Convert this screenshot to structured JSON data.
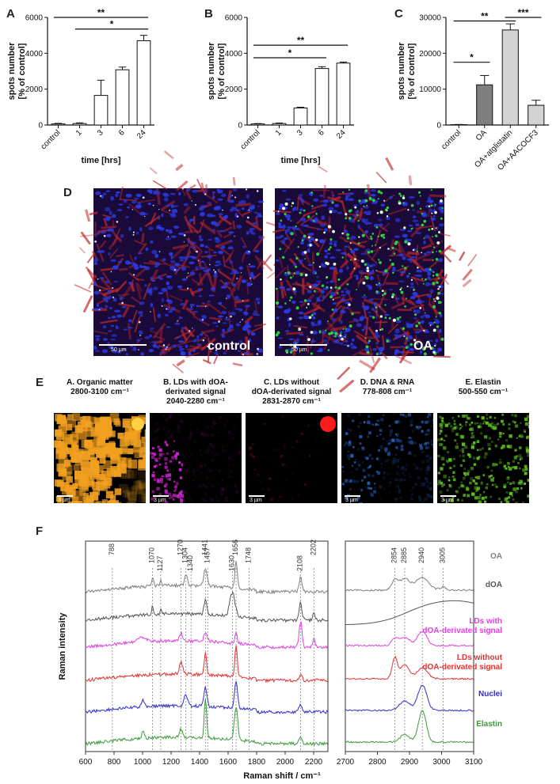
{
  "panel_letters": {
    "A": "A",
    "B": "B",
    "C": "C",
    "D": "D",
    "E": "E",
    "F": "F"
  },
  "chart_data": [
    {
      "id": "A",
      "type": "bar",
      "categories": [
        "control",
        "1",
        "3",
        "6",
        "24"
      ],
      "values": [
        60,
        80,
        1650,
        3080,
        4700
      ],
      "errors": [
        30,
        40,
        850,
        150,
        300
      ],
      "ylabel_line1": "spots number",
      "ylabel_line2": "[% of control]",
      "xlabel": "time [hrs]",
      "ylim": [
        0,
        6000
      ],
      "yticks": [
        "0",
        "2000",
        "4000",
        "6000"
      ],
      "yticks_values": [
        0,
        2000,
        4000,
        6000
      ],
      "bar_color": "#ffffff",
      "significance": [
        {
          "from": 0,
          "to": 4,
          "label": "**",
          "y": 6000
        },
        {
          "from": 1,
          "to": 4,
          "label": "*",
          "y": 5350
        }
      ]
    },
    {
      "id": "B",
      "type": "bar",
      "categories": [
        "control",
        "1",
        "3",
        "6",
        "24"
      ],
      "values": [
        60,
        80,
        950,
        3150,
        3450
      ],
      "errors": [
        20,
        30,
        40,
        100,
        60
      ],
      "ylabel_line1": "spots number",
      "ylabel_line2": "[% of control]",
      "xlabel": "time [hrs]",
      "ylim": [
        0,
        6000
      ],
      "yticks": [
        "0",
        "2000",
        "4000",
        "6000"
      ],
      "yticks_values": [
        0,
        2000,
        4000,
        6000
      ],
      "bar_color": "#ffffff",
      "significance": [
        {
          "from": 0,
          "to": 4,
          "label": "**",
          "y": 4450
        },
        {
          "from": 0,
          "to": 3,
          "label": "*",
          "y": 3750
        }
      ]
    },
    {
      "id": "C",
      "type": "bar",
      "categories": [
        "control",
        "OA",
        "OA+atglistatin",
        "OA+AACOCF3"
      ],
      "values": [
        100,
        11200,
        26500,
        5500
      ],
      "errors": [
        50,
        2600,
        1700,
        1400
      ],
      "bar_colors": [
        "#ffffff",
        "#7f7f7f",
        "#d3d3d3",
        "#d3d3d3"
      ],
      "ylabel_line1": "spots number",
      "ylabel_line2": "[% of control]",
      "xlabel": "",
      "ylim": [
        0,
        30000
      ],
      "yticks": [
        "0",
        "10000",
        "20000",
        "30000"
      ],
      "yticks_values": [
        0,
        10000,
        20000,
        30000
      ],
      "significance": [
        {
          "from": 0,
          "to": 2,
          "label": "**",
          "y": 29000
        },
        {
          "from": 2,
          "to": 3,
          "label": "***",
          "y": 30000
        },
        {
          "from": 0,
          "to": 1,
          "label": "*",
          "y": 17500
        }
      ]
    },
    {
      "id": "F",
      "type": "line",
      "ylabel": "Raman intensity",
      "xlabel": "Raman shift / cm⁻¹",
      "left_xlim": [
        600,
        2300
      ],
      "left_xticks": [
        "600",
        "800",
        "1000",
        "1200",
        "1400",
        "1600",
        "1800",
        "2000",
        "2200"
      ],
      "left_xticks_values": [
        600,
        800,
        1000,
        1200,
        1400,
        1600,
        1800,
        2000,
        2200
      ],
      "right_xlim": [
        2700,
        3100
      ],
      "right_xticks": [
        "2700",
        "2800",
        "2900",
        "3000",
        "3100"
      ],
      "right_xticks_values": [
        2700,
        2800,
        2900,
        3000,
        3100
      ],
      "peaks_left": [
        "788",
        "1070",
        "1127",
        "1270",
        "1304",
        "1340",
        "1441",
        "1457",
        "1630",
        "1656",
        "1748",
        "2108",
        "2202"
      ],
      "peaks_left_values": [
        788,
        1070,
        1127,
        1270,
        1304,
        1340,
        1441,
        1457,
        1630,
        1656,
        1748,
        2108,
        2202
      ],
      "peaks_right": [
        "2854",
        "2885",
        "2940",
        "3005"
      ],
      "peaks_right_values": [
        2854,
        2885,
        2940,
        3005
      ],
      "series": [
        {
          "name": "OA",
          "color": "#7f7f7f",
          "name2": ""
        },
        {
          "name": "dOA",
          "color": "#555555",
          "name2": ""
        },
        {
          "name": "LDs with",
          "name2": "dOA-derivated signal",
          "color": "#e040e0"
        },
        {
          "name": "LDs without",
          "name2": "dOA-derivated signal",
          "color": "#e53030"
        },
        {
          "name": "Nuclei",
          "color": "#3030d0",
          "name2": ""
        },
        {
          "name": "Elastin",
          "color": "#3a9a3a",
          "name2": ""
        }
      ]
    }
  ],
  "panel_d": {
    "left_label": "control",
    "right_label": "OA",
    "left_scale": "50 µm",
    "right_scale": "50 µm"
  },
  "panel_e": {
    "tiles": [
      {
        "line1": "A. Organic matter",
        "line2": "2800-3100 cm⁻¹",
        "line3": "",
        "scale": "3 µm",
        "color": "#f2a020"
      },
      {
        "line1": "B. LDs with dOA-",
        "line2": "derivated signal",
        "line3": "2040-2280 cm⁻¹",
        "scale": "3 µm",
        "color": "#d020d0"
      },
      {
        "line1": "C. LDs without",
        "line2": "dOA-derivated signal",
        "line3": "2831-2870 cm⁻¹",
        "scale": "3 µm",
        "color": "#e02020"
      },
      {
        "line1": "D. DNA & RNA",
        "line2": "778-808 cm⁻¹",
        "line3": "",
        "scale": "3 µm",
        "color": "#2a6ad0"
      },
      {
        "line1": "E. Elastin",
        "line2": "500-550 cm⁻¹",
        "line3": "",
        "scale": "3 µm",
        "color": "#60c020"
      }
    ]
  }
}
